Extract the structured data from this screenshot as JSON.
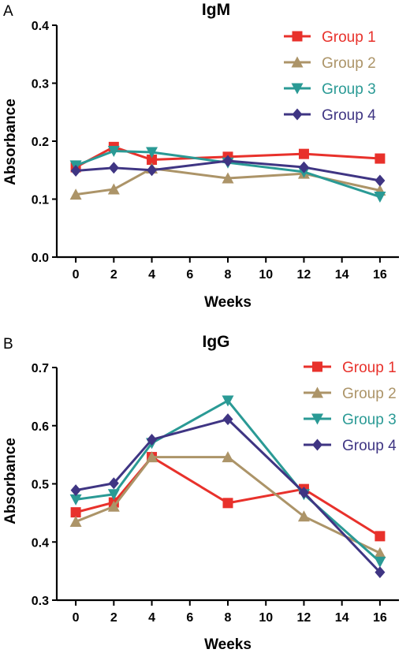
{
  "chart_data": [
    {
      "panel_label": "A",
      "type": "line",
      "title": "IgM",
      "xlabel": "Weeks",
      "ylabel": "Absorbance",
      "x": [
        0,
        2,
        4,
        8,
        12,
        16
      ],
      "xticks": [
        "0",
        "2",
        "4",
        "6",
        "8",
        "10",
        "12",
        "14",
        "16"
      ],
      "xlim": [
        -1,
        17
      ],
      "yticks": [
        "0.0",
        "0.1",
        "0.2",
        "0.3",
        "0.4"
      ],
      "ylim": [
        0,
        0.4
      ],
      "legend_position": "top-right",
      "grid": false,
      "series": [
        {
          "name": "Group 1",
          "color": "#e8312b",
          "marker": "square",
          "values": [
            0.155,
            0.19,
            0.168,
            0.173,
            0.178,
            0.17
          ]
        },
        {
          "name": "Group 2",
          "color": "#ac9468",
          "marker": "triangle-up",
          "values": [
            0.108,
            0.117,
            0.153,
            0.136,
            0.144,
            0.115
          ]
        },
        {
          "name": "Group 3",
          "color": "#2a9a95",
          "marker": "triangle-down",
          "values": [
            0.158,
            0.183,
            0.181,
            0.163,
            0.147,
            0.104
          ]
        },
        {
          "name": "Group 4",
          "color": "#3f3583",
          "marker": "diamond",
          "values": [
            0.149,
            0.154,
            0.15,
            0.166,
            0.155,
            0.132
          ]
        }
      ]
    },
    {
      "panel_label": "B",
      "type": "line",
      "title": "IgG",
      "xlabel": "Weeks",
      "ylabel": "Absorbance",
      "x": [
        0,
        2,
        4,
        8,
        12,
        16
      ],
      "xticks": [
        "0",
        "2",
        "4",
        "6",
        "8",
        "10",
        "12",
        "14",
        "16"
      ],
      "xlim": [
        -1,
        17
      ],
      "yticks": [
        "0.3",
        "0.4",
        "0.5",
        "0.6",
        "0.7"
      ],
      "ylim": [
        0.3,
        0.7
      ],
      "legend_position": "top-right",
      "grid": false,
      "series": [
        {
          "name": "Group 1",
          "color": "#e8312b",
          "marker": "square",
          "values": [
            0.451,
            0.468,
            0.546,
            0.467,
            0.491,
            0.41
          ]
        },
        {
          "name": "Group 2",
          "color": "#ac9468",
          "marker": "triangle-up",
          "values": [
            0.435,
            0.461,
            0.546,
            0.546,
            0.444,
            0.381
          ]
        },
        {
          "name": "Group 3",
          "color": "#2a9a95",
          "marker": "triangle-down",
          "values": [
            0.473,
            0.482,
            0.57,
            0.643,
            0.482,
            0.366
          ]
        },
        {
          "name": "Group 4",
          "color": "#3f3583",
          "marker": "diamond",
          "values": [
            0.489,
            0.501,
            0.576,
            0.611,
            0.485,
            0.348
          ]
        }
      ]
    }
  ]
}
